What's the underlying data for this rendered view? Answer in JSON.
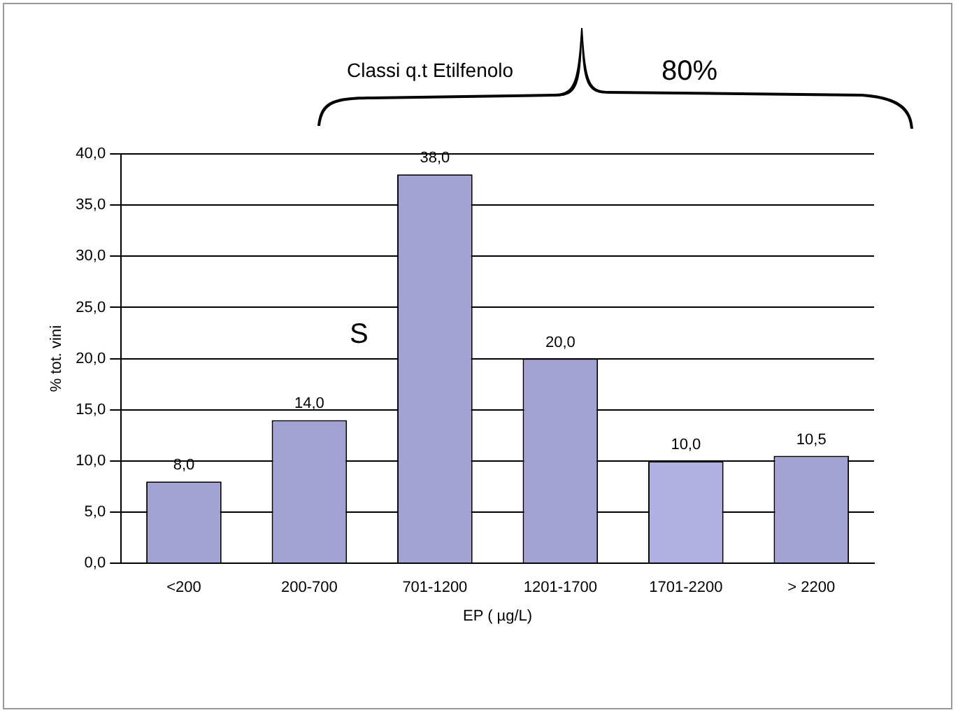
{
  "chart_data": {
    "type": "bar",
    "title": "Classi q.t  Etilfenolo",
    "xlabel": "EP ( µg/L)",
    "ylabel": "% tot. vini",
    "categories": [
      "<200",
      "200-700",
      "701-1200",
      "1201-1700",
      "1701-2200",
      "> 2200"
    ],
    "values": [
      8.0,
      14.0,
      38.0,
      20.0,
      10.0,
      10.5
    ],
    "colors": [
      "#a3a3d3",
      "#a3a3d3",
      "#a3a3d3",
      "#a3a3d3",
      "#b0b0e2",
      "#a3a3d3"
    ],
    "value_labels": [
      "8,0",
      "14,0",
      "38,0",
      "20,0",
      "10,0",
      "10,5"
    ],
    "ylim": [
      0,
      40
    ],
    "yticks": [
      {
        "value": 0,
        "label": "0,0"
      },
      {
        "value": 5,
        "label": "5,0"
      },
      {
        "value": 10,
        "label": "10,0"
      },
      {
        "value": 15,
        "label": "15,0"
      },
      {
        "value": 20,
        "label": "20,0"
      },
      {
        "value": 25,
        "label": "25,0"
      },
      {
        "value": 30,
        "label": "30,0"
      },
      {
        "value": 35,
        "label": "35,0"
      },
      {
        "value": 40,
        "label": "40,0"
      }
    ],
    "annotations": [
      "80%",
      "S"
    ],
    "grid": "y",
    "legend": false
  }
}
